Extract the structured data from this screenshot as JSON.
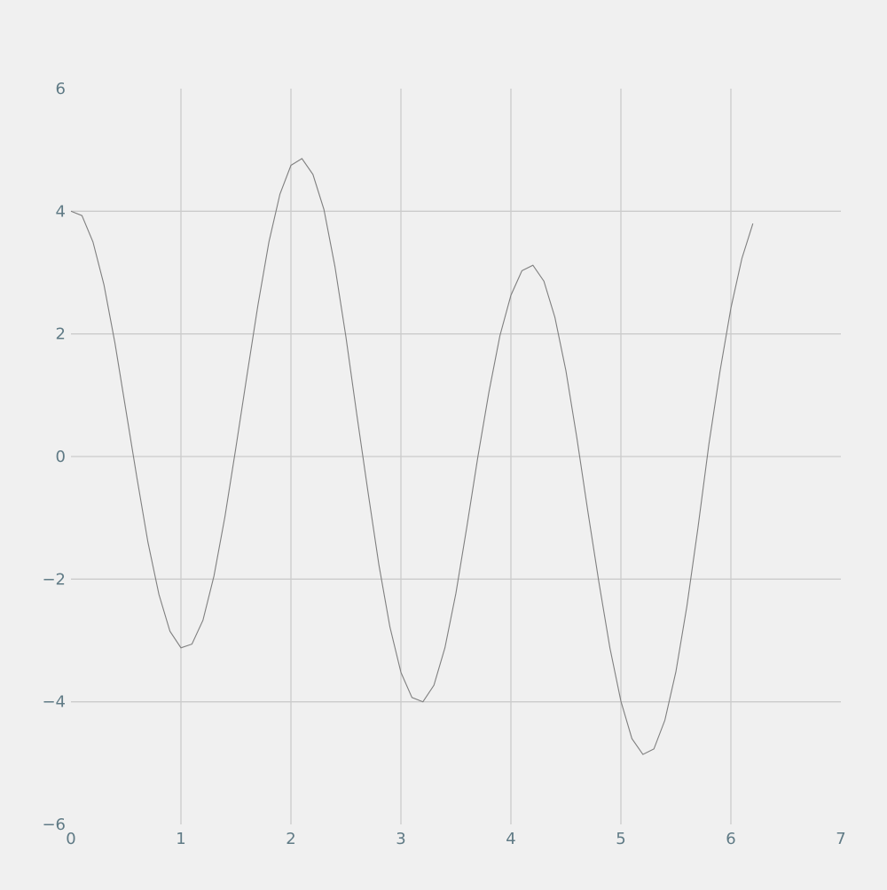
{
  "chart_data": {
    "type": "line",
    "title": "",
    "xlabel": "",
    "ylabel": "",
    "xlim": [
      0,
      7
    ],
    "ylim": [
      -6,
      6
    ],
    "grid": true,
    "colors": {
      "background": "#f0f0f0",
      "grid": "#cbcbcb",
      "line": "#7f7f7f",
      "tick_text": "#5f7a85"
    },
    "x_ticks": [
      {
        "value": 0,
        "label": "0"
      },
      {
        "value": 1,
        "label": "1"
      },
      {
        "value": 2,
        "label": "2"
      },
      {
        "value": 3,
        "label": "3"
      },
      {
        "value": 4,
        "label": "4"
      },
      {
        "value": 5,
        "label": "5"
      },
      {
        "value": 6,
        "label": "6"
      },
      {
        "value": 7,
        "label": "7"
      }
    ],
    "y_ticks": [
      {
        "value": -6,
        "label": "−6"
      },
      {
        "value": -4,
        "label": "−4"
      },
      {
        "value": -2,
        "label": "−2"
      },
      {
        "value": 0,
        "label": "0"
      },
      {
        "value": 2,
        "label": "2"
      },
      {
        "value": 4,
        "label": "4"
      },
      {
        "value": 6,
        "label": "6"
      }
    ],
    "series": [
      {
        "x": [
          0,
          0.1,
          0.2,
          0.3,
          0.4,
          0.5,
          0.6,
          0.7,
          0.8,
          0.9,
          1.0,
          1.1,
          1.2,
          1.3,
          1.4,
          1.5,
          1.6,
          1.7,
          1.8,
          1.9,
          2.0,
          2.1,
          2.2,
          2.3,
          2.4,
          2.5,
          2.6,
          2.7,
          2.8,
          2.9,
          3.0,
          3.1,
          3.2,
          3.3,
          3.4,
          3.5,
          3.6,
          3.7,
          3.8,
          3.9,
          4.0,
          4.1,
          4.2,
          4.3,
          4.4,
          4.5,
          4.6,
          4.7,
          4.8,
          4.9,
          5.0,
          5.1,
          5.2,
          5.3,
          5.4,
          5.5,
          5.6,
          5.7,
          5.8,
          5.9,
          6.0,
          6.1,
          6.2
        ],
        "y": [
          4.0,
          3.93,
          3.5,
          2.8,
          1.85,
          0.75,
          -0.35,
          -1.4,
          -2.25,
          -2.85,
          -3.12,
          -3.06,
          -2.67,
          -1.95,
          -0.98,
          0.15,
          1.32,
          2.47,
          3.5,
          4.28,
          4.75,
          4.86,
          4.6,
          4.03,
          3.1,
          1.95,
          0.67,
          -0.57,
          -1.77,
          -2.78,
          -3.52,
          -3.93,
          -4.0,
          -3.73,
          -3.12,
          -2.23,
          -1.14,
          0.0,
          1.05,
          1.97,
          2.63,
          3.03,
          3.12,
          2.86,
          2.27,
          1.4,
          0.3,
          -0.9,
          -2.05,
          -3.12,
          -3.99,
          -4.6,
          -4.86,
          -4.77,
          -4.3,
          -3.51,
          -2.44,
          -1.17,
          0.2,
          1.38,
          2.42,
          3.23,
          3.8
        ]
      }
    ]
  }
}
